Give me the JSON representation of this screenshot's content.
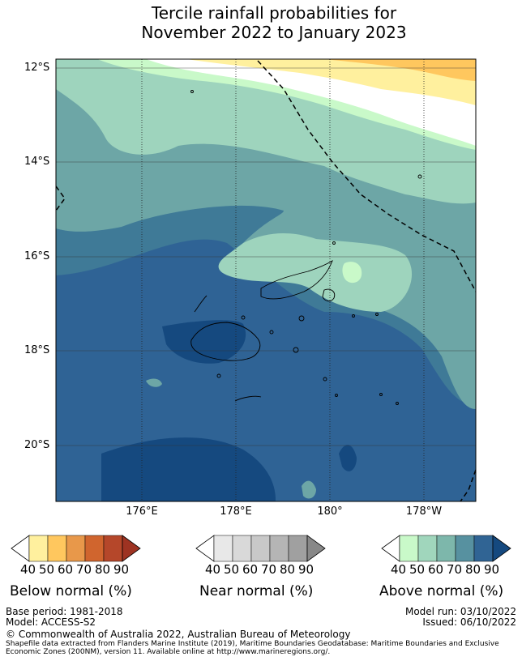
{
  "title": {
    "line1": "Tercile rainfall probabilities for",
    "line2": "November 2022 to January 2023"
  },
  "map": {
    "lat_ticks": [
      "12°S",
      "14°S",
      "16°S",
      "18°S",
      "20°S"
    ],
    "lon_ticks": [
      "176°E",
      "178°E",
      "180°",
      "178°W"
    ]
  },
  "colorbars": [
    {
      "title": "Below normal (%)",
      "ticks": [
        "40",
        "50",
        "60",
        "70",
        "80",
        "90"
      ],
      "colors": [
        "#ffffff",
        "#fff09e",
        "#ffc75e",
        "#e8984a",
        "#d0652e",
        "#b5472a",
        "#9e3322"
      ]
    },
    {
      "title": "Near normal (%)",
      "ticks": [
        "40",
        "50",
        "60",
        "70",
        "80",
        "90"
      ],
      "colors": [
        "#ffffff",
        "#e8e8e8",
        "#d9d9d9",
        "#c8c8c8",
        "#b5b5b5",
        "#a0a0a0",
        "#888888"
      ]
    },
    {
      "title": "Above normal (%)",
      "ticks": [
        "40",
        "50",
        "60",
        "70",
        "80",
        "90"
      ],
      "colors": [
        "#ffffff",
        "#c9f9c9",
        "#a0d6bc",
        "#7db7ab",
        "#5791a0",
        "#306494",
        "#15497f"
      ]
    }
  ],
  "footer": {
    "base_period": "Base period: 1981-2018",
    "model": "Model: ACCESS-S2",
    "model_run": "Model run: 03/10/2022",
    "issued": "Issued: 06/10/2022",
    "copyright": "© Commonwealth of Australia 2022, Australian Bureau of Meteorology",
    "shapefile_line1": "Shapefile data extracted from Flanders Marine Institute (2019), Maritime Boundaries Geodatabase: Maritime Boundaries and Exclusive",
    "shapefile_line2": "Economic Zones (200NM), version 11. Available online at http://www.marineregions.org/."
  }
}
